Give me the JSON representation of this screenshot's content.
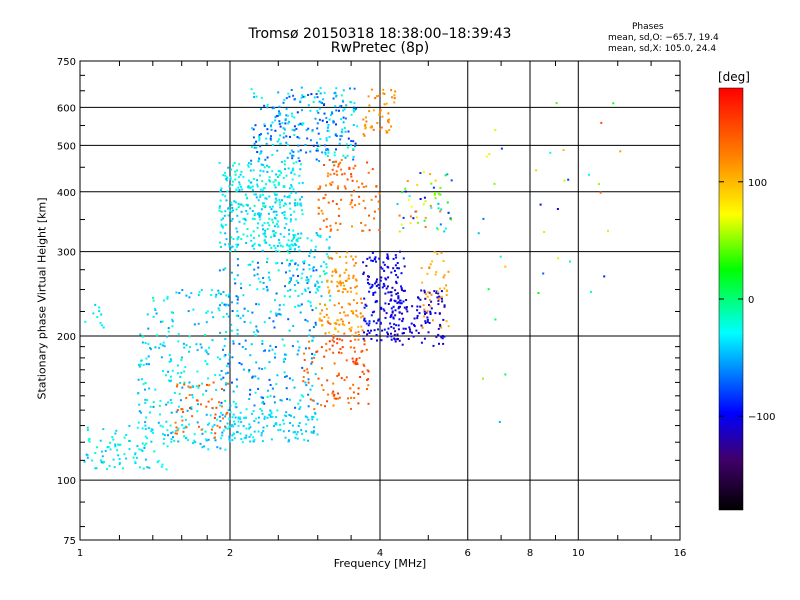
{
  "header": {
    "title_line1": "Tromsø 20150318 18:38:00–18:39:43",
    "title_line2": "RwPretec (8p)",
    "phases_heading": "Phases",
    "stat_o": "mean, sd,O: −65.7, 19.4",
    "stat_x": "mean, sd,X: 105.0, 24.4"
  },
  "colorbar": {
    "unit": "[deg]",
    "range": [
      -180,
      180
    ],
    "ticks": [
      {
        "value": 100,
        "label": "100"
      },
      {
        "value": 0,
        "label": "0"
      },
      {
        "value": -100,
        "label": "−100"
      }
    ]
  },
  "chart_data": {
    "type": "scatter",
    "title": "Tromsø 20150318 18:38:00–18:39:43",
    "subtitle": "RwPretec (8p)",
    "xlabel": "Frequency [MHz]",
    "ylabel": "Stationary phase Virtual Height [km]",
    "x_scale": "log",
    "y_scale": "log",
    "xlim": [
      1,
      16
    ],
    "ylim": [
      75,
      750
    ],
    "grid": true,
    "x_ticks": [
      {
        "value": 1,
        "label": "1"
      },
      {
        "value": 2,
        "label": "2"
      },
      {
        "value": 4,
        "label": "4"
      },
      {
        "value": 6,
        "label": "6"
      },
      {
        "value": 8,
        "label": "8"
      },
      {
        "value": 10,
        "label": "10"
      },
      {
        "value": 16,
        "label": "16"
      }
    ],
    "y_ticks": [
      {
        "value": 75,
        "label": "75"
      },
      {
        "value": 100,
        "label": "100"
      },
      {
        "value": 200,
        "label": "200"
      },
      {
        "value": 300,
        "label": "300"
      },
      {
        "value": 400,
        "label": "400"
      },
      {
        "value": 500,
        "label": "500"
      },
      {
        "value": 600,
        "label": "600"
      },
      {
        "value": 750,
        "label": "750"
      }
    ],
    "color_variable": "phase [deg]",
    "clusters": [
      {
        "freq": [
          1.02,
          1.5
        ],
        "height": [
          105,
          130
        ],
        "phase": [
          -50,
          -20
        ],
        "n": 90
      },
      {
        "freq": [
          1.02,
          1.12
        ],
        "height": [
          205,
          235
        ],
        "phase": [
          -45,
          -30
        ],
        "n": 10
      },
      {
        "freq": [
          1.3,
          2.0
        ],
        "height": [
          115,
          250
        ],
        "phase": [
          -60,
          -20
        ],
        "n": 260
      },
      {
        "freq": [
          1.55,
          2.0
        ],
        "height": [
          120,
          160
        ],
        "phase": [
          120,
          150
        ],
        "n": 50
      },
      {
        "freq": [
          1.9,
          3.0
        ],
        "height": [
          120,
          140
        ],
        "phase": [
          -50,
          -30
        ],
        "n": 140
      },
      {
        "freq": [
          1.9,
          3.0
        ],
        "height": [
          140,
          290
        ],
        "phase": [
          -80,
          -20
        ],
        "n": 260
      },
      {
        "freq": [
          1.9,
          2.8
        ],
        "height": [
          300,
          460
        ],
        "phase": [
          -50,
          -20
        ],
        "n": 360
      },
      {
        "freq": [
          2.2,
          3.6
        ],
        "height": [
          460,
          660
        ],
        "phase": [
          -90,
          -20
        ],
        "n": 280
      },
      {
        "freq": [
          2.8,
          3.8
        ],
        "height": [
          140,
          200
        ],
        "phase": [
          120,
          160
        ],
        "n": 110
      },
      {
        "freq": [
          2.6,
          3.2
        ],
        "height": [
          230,
          330
        ],
        "phase": [
          -50,
          -20
        ],
        "n": 90
      },
      {
        "freq": [
          3.0,
          3.7
        ],
        "height": [
          200,
          240
        ],
        "phase": [
          95,
          130
        ],
        "n": 70
      },
      {
        "freq": [
          3.0,
          4.0
        ],
        "height": [
          330,
          470
        ],
        "phase": [
          110,
          150
        ],
        "n": 100
      },
      {
        "freq": [
          3.1,
          3.6
        ],
        "height": [
          245,
          300
        ],
        "phase": [
          100,
          125
        ],
        "n": 60
      },
      {
        "freq": [
          3.7,
          4.5
        ],
        "height": [
          195,
          300
        ],
        "phase": [
          -120,
          -90
        ],
        "n": 170
      },
      {
        "freq": [
          3.7,
          4.3
        ],
        "height": [
          520,
          660
        ],
        "phase": [
          100,
          130
        ],
        "n": 50
      },
      {
        "freq": [
          4.2,
          5.4
        ],
        "height": [
          190,
          250
        ],
        "phase": [
          -120,
          -100
        ],
        "n": 110
      },
      {
        "freq": [
          4.8,
          5.5
        ],
        "height": [
          200,
          300
        ],
        "phase": [
          90,
          120
        ],
        "n": 40
      },
      {
        "freq": [
          4.3,
          5.6
        ],
        "height": [
          330,
          440
        ],
        "phase": [
          -110,
          130
        ],
        "n": 60
      },
      {
        "freq": [
          6.2,
          7.2
        ],
        "height": [
          130,
          540
        ],
        "phase": [
          -100,
          140
        ],
        "n": 14
      },
      {
        "freq": [
          8.2,
          12.5
        ],
        "height": [
          200,
          640
        ],
        "phase": [
          -120,
          150
        ],
        "n": 22
      }
    ]
  }
}
